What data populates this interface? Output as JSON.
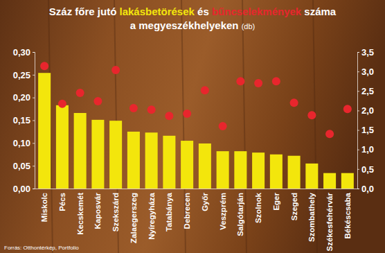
{
  "chart_data": {
    "type": "bar",
    "title": [
      "Száz főre jutó lakásbetörések és bűncselekmények száma",
      "a megyeszékhelyeken (db)"
    ],
    "source": "Forrás: Otthontérkép, Portfolio",
    "categories": [
      "Miskolc",
      "Pécs",
      "Kecskemét",
      "Kaposvár",
      "Szekszárd",
      "Zalaegerszeg",
      "Nyíregyháza",
      "Tatabánya",
      "Debrecen",
      "Győr",
      "Veszprém",
      "Salgótarján",
      "Szolnok",
      "Eger",
      "Szeged",
      "Szombathely",
      "Székesfehérvár",
      "Békéscsaba"
    ],
    "series": [
      {
        "name": "lakásbetörések",
        "type": "bar",
        "color": "#f3e60c",
        "values": [
          0.254,
          0.183,
          0.166,
          0.151,
          0.149,
          0.125,
          0.123,
          0.116,
          0.105,
          0.099,
          0.082,
          0.082,
          0.079,
          0.075,
          0.072,
          0.055,
          0.034,
          0.034
        ]
      },
      {
        "name": "bűncselekmények",
        "type": "scatter",
        "marker": "circle",
        "color": "#e8262d",
        "axis": "y2",
        "values": [
          3.14,
          2.17,
          2.45,
          2.24,
          3.04,
          2.06,
          2.02,
          1.86,
          1.92,
          2.52,
          1.6,
          2.75,
          2.7,
          2.75,
          2.2,
          1.88,
          1.4,
          2.04
        ]
      }
    ],
    "ylim": [
      0,
      0.3
    ],
    "yticks": [
      {
        "value": 0,
        "label": "0,00"
      },
      {
        "value": 0.05,
        "label": "0,05"
      },
      {
        "value": 0.1,
        "label": "0,10"
      },
      {
        "value": 0.15,
        "label": "0,15"
      },
      {
        "value": 0.2,
        "label": "0,20"
      },
      {
        "value": 0.25,
        "label": "0,25"
      },
      {
        "value": 0.3,
        "label": "0,30"
      }
    ],
    "y2lim": [
      0,
      3.5
    ],
    "y2ticks": [
      {
        "value": 0,
        "label": "0,0"
      },
      {
        "value": 0.5,
        "label": "0,5"
      },
      {
        "value": 1,
        "label": "1,0"
      },
      {
        "value": 1.5,
        "label": "1,5"
      },
      {
        "value": 2,
        "label": "2,0"
      },
      {
        "value": 2.5,
        "label": "2,5"
      },
      {
        "value": 3,
        "label": "3,0"
      },
      {
        "value": 3.5,
        "label": "3,5"
      }
    ],
    "grid": false
  }
}
